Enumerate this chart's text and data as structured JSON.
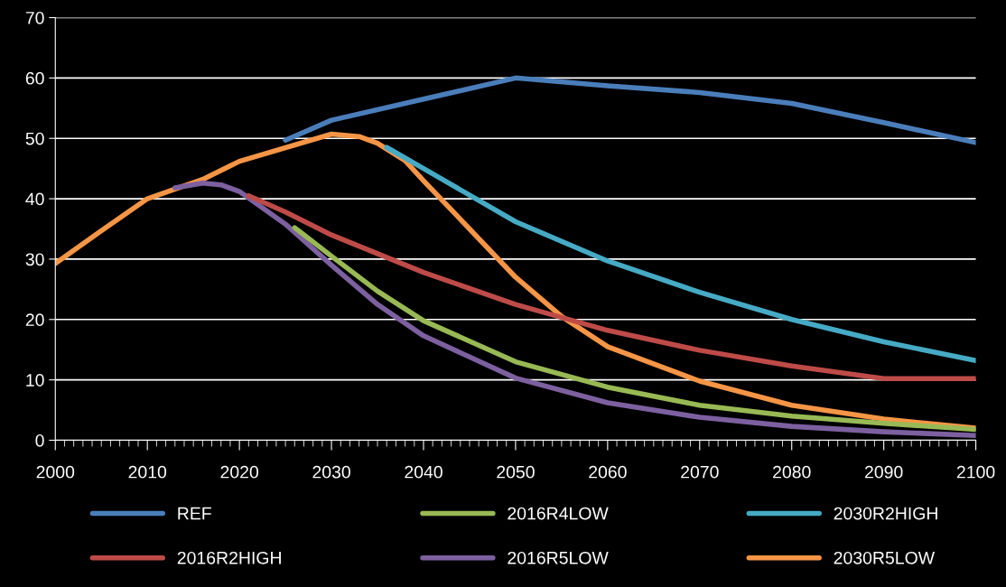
{
  "chart_data": {
    "type": "line",
    "xlim": [
      2000,
      2100
    ],
    "ylim": [
      0,
      70
    ],
    "xticks": [
      2000,
      2010,
      2020,
      2030,
      2040,
      2050,
      2060,
      2070,
      2080,
      2090,
      2100
    ],
    "yticks": [
      0,
      10,
      20,
      30,
      40,
      50,
      60,
      70
    ],
    "grid": "y",
    "legend": "bottom",
    "marker": "none",
    "line_style": "solid",
    "series": [
      {
        "name": "REF",
        "color": "#4a7ebb",
        "x": [
          2025,
          2030,
          2040,
          2050,
          2060,
          2070,
          2080,
          2090,
          2100
        ],
        "values": [
          49.7,
          53,
          56.5,
          60,
          58.7,
          57.6,
          55.8,
          52.6,
          49.3
        ]
      },
      {
        "name": "2016R2HIGH",
        "color": "#be4b48",
        "x": [
          2021,
          2025,
          2030,
          2040,
          2050,
          2060,
          2070,
          2080,
          2090,
          2100
        ],
        "values": [
          40.5,
          37.8,
          34,
          27.8,
          22.5,
          18.2,
          14.9,
          12.3,
          10.2,
          10.2
        ]
      },
      {
        "name": "2016R4LOW",
        "color": "#98b954",
        "x": [
          2026,
          2030,
          2035,
          2040,
          2050,
          2060,
          2070,
          2080,
          2090,
          2100
        ],
        "values": [
          35.2,
          30.5,
          24.7,
          19.8,
          13,
          8.8,
          5.8,
          4,
          2.8,
          1.8
        ]
      },
      {
        "name": "2016R5LOW",
        "color": "#7d60a0",
        "x": [
          2013,
          2016,
          2018,
          2020,
          2025,
          2030,
          2035,
          2040,
          2050,
          2060,
          2070,
          2080,
          2090,
          2100
        ],
        "values": [
          41.8,
          42.6,
          42.3,
          41.2,
          35.8,
          29,
          22.5,
          17.3,
          10.3,
          6.2,
          3.8,
          2.3,
          1.4,
          0.8
        ]
      },
      {
        "name": "2030R2HIGH",
        "color": "#46aac5",
        "x": [
          2036,
          2040,
          2050,
          2060,
          2070,
          2080,
          2090,
          2100
        ],
        "values": [
          48.5,
          45,
          36.2,
          29.7,
          24.5,
          20,
          16.3,
          13.2
        ]
      },
      {
        "name": "2030R5LOW",
        "color": "#f69546",
        "x": [
          2000,
          2005,
          2010,
          2016,
          2020,
          2030,
          2033,
          2035,
          2038,
          2040,
          2045,
          2050,
          2055,
          2060,
          2070,
          2080,
          2090,
          2100
        ],
        "values": [
          29.3,
          34.7,
          40,
          43.2,
          46.2,
          50.7,
          50.3,
          49.2,
          46.3,
          43,
          35,
          27,
          20.5,
          15.5,
          9.8,
          5.8,
          3.5,
          2
        ]
      }
    ]
  }
}
